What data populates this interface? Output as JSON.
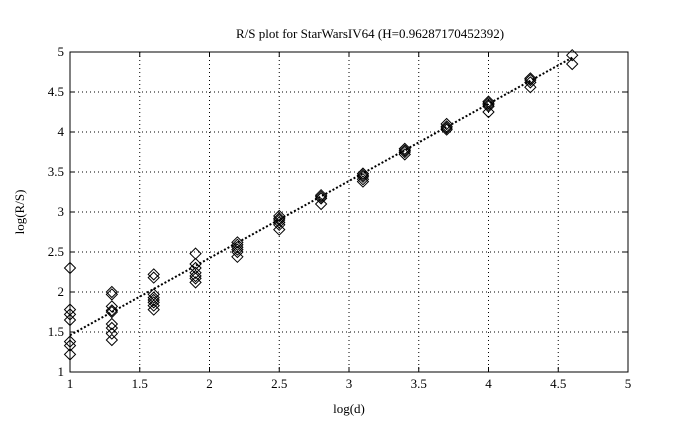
{
  "chart_data": {
    "type": "scatter",
    "title": "R/S plot for StarWarsIV64 (H=0.96287170452392)",
    "xlabel": "log(d)",
    "ylabel": "log(R/S)",
    "xlim": [
      1,
      5
    ],
    "ylim": [
      1,
      5
    ],
    "xticks": [
      1,
      1.5,
      2,
      2.5,
      3,
      3.5,
      4,
      4.5,
      5
    ],
    "yticks": [
      1,
      1.5,
      2,
      2.5,
      3,
      3.5,
      4,
      4.5,
      5
    ],
    "xtick_labels": [
      "1",
      "1.5",
      "2",
      "2.5",
      "3",
      "3.5",
      "4",
      "4.5",
      "5"
    ],
    "ytick_labels": [
      "1",
      "1.5",
      "2",
      "2.5",
      "3",
      "3.5",
      "4",
      "4.5",
      "5"
    ],
    "grid": true,
    "marker": "diamond",
    "series": [
      {
        "points": [
          [
            1.0,
            2.3
          ],
          [
            1.0,
            1.78
          ],
          [
            1.0,
            1.72
          ],
          [
            1.0,
            1.65
          ],
          [
            1.0,
            1.38
          ],
          [
            1.0,
            1.33
          ],
          [
            1.0,
            1.22
          ],
          [
            1.3,
            2.0
          ],
          [
            1.3,
            1.97
          ],
          [
            1.3,
            1.82
          ],
          [
            1.3,
            1.77
          ],
          [
            1.3,
            1.75
          ],
          [
            1.3,
            1.6
          ],
          [
            1.3,
            1.55
          ],
          [
            1.3,
            1.48
          ],
          [
            1.3,
            1.4
          ],
          [
            1.6,
            2.22
          ],
          [
            1.6,
            2.18
          ],
          [
            1.6,
            1.97
          ],
          [
            1.6,
            1.93
          ],
          [
            1.6,
            1.9
          ],
          [
            1.6,
            1.87
          ],
          [
            1.6,
            1.83
          ],
          [
            1.6,
            1.78
          ],
          [
            1.9,
            2.48
          ],
          [
            1.9,
            2.35
          ],
          [
            1.9,
            2.3
          ],
          [
            1.9,
            2.24
          ],
          [
            1.9,
            2.2
          ],
          [
            1.9,
            2.17
          ],
          [
            1.9,
            2.12
          ],
          [
            2.2,
            2.62
          ],
          [
            2.2,
            2.59
          ],
          [
            2.2,
            2.56
          ],
          [
            2.2,
            2.53
          ],
          [
            2.2,
            2.5
          ],
          [
            2.2,
            2.44
          ],
          [
            2.5,
            2.95
          ],
          [
            2.5,
            2.92
          ],
          [
            2.5,
            2.9
          ],
          [
            2.5,
            2.87
          ],
          [
            2.5,
            2.84
          ],
          [
            2.5,
            2.78
          ],
          [
            2.8,
            3.21
          ],
          [
            2.8,
            3.19
          ],
          [
            2.8,
            3.17
          ],
          [
            2.8,
            3.1
          ],
          [
            3.1,
            3.48
          ],
          [
            3.1,
            3.46
          ],
          [
            3.1,
            3.44
          ],
          [
            3.1,
            3.41
          ],
          [
            3.1,
            3.38
          ],
          [
            3.4,
            3.79
          ],
          [
            3.4,
            3.77
          ],
          [
            3.4,
            3.75
          ],
          [
            3.4,
            3.72
          ],
          [
            3.7,
            4.1
          ],
          [
            3.7,
            4.07
          ],
          [
            3.7,
            4.05
          ],
          [
            3.7,
            4.03
          ],
          [
            4.0,
            4.38
          ],
          [
            4.0,
            4.36
          ],
          [
            4.0,
            4.34
          ],
          [
            4.0,
            4.32
          ],
          [
            4.0,
            4.25
          ],
          [
            4.3,
            4.67
          ],
          [
            4.3,
            4.65
          ],
          [
            4.3,
            4.62
          ],
          [
            4.3,
            4.56
          ],
          [
            4.6,
            4.96
          ],
          [
            4.6,
            4.85
          ]
        ]
      }
    ],
    "fit_line": {
      "x": [
        1.0,
        4.6
      ],
      "y": [
        1.46,
        4.93
      ]
    }
  }
}
